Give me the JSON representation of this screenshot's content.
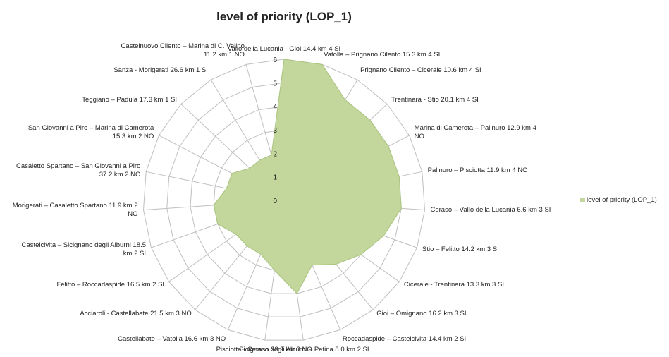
{
  "chart_data": {
    "type": "radar",
    "title": "level of priority (LOP_1)",
    "categories": [
      "Vallo della Lucania - Gioi 14.4 km 4 SI",
      "Vatolla – Prignano Cilento 15.3 km 4 SI",
      "Prignano Cilento – Cicerale 10.6 km 4 SI",
      "Trentinara - Stio 20.1 km 4 SI",
      "Marina di Camerota – Palinuro 12.9 km 4 NO",
      "Palinuro – Pisciotta 11.9 km 4 NO",
      "Ceraso – Vallo della Lucania 6.6 km 3 SI",
      "Stio – Felitto 14.2 km 3 SI",
      "Cicerale - Trentinara 13.3 km 3 SI",
      "Gioi – Omignano 16.2 km 3 SI",
      "Roccadaspide – Castelcivita 14.4 km 2 SI",
      "Sicignano degli Alburni – Petina 8.0 km 2 SI",
      "Pisciotta - Ceraso 23.9 km 3 NO",
      "Castellabate – Vatolla 16.6 km 3 NO",
      "Acciaroli - Castellabate 21.5 km 3 NO",
      "Felitto – Roccadaspide 16.5 km 2 SI",
      "Castelcivita – Sicignano degli Alburni 18.5 km 2 SI",
      "Morigerati – Casaletto Spartano 11.9 km 2 NO",
      "Casaletto Spartano – San Giovanni a Piro 37.2 km 2 NO",
      "San Giovanni a Piro – Marina di Camerota 15.3 km 2 NO",
      "Teggiano – Padula 17.3 km 1 SI",
      "Sanza - Morigerati 26.6 km 1 SI",
      "Castelnuovo Cilento – Marina di C. Velino 11.2 km 1 NO"
    ],
    "series": [
      {
        "name": "level of priority (LOP_1)",
        "color": "#c3d69b",
        "values": [
          6,
          6,
          5,
          5,
          5,
          5,
          5,
          4.5,
          4,
          3.5,
          3,
          4,
          3,
          2.5,
          2.5,
          2.5,
          3,
          3,
          2.5,
          2.5,
          2,
          2,
          2
        ]
      }
    ],
    "ylim": [
      0,
      6
    ],
    "yticks": [
      0,
      1,
      2,
      3,
      4,
      5,
      6
    ],
    "grid": true,
    "legend": "right"
  }
}
